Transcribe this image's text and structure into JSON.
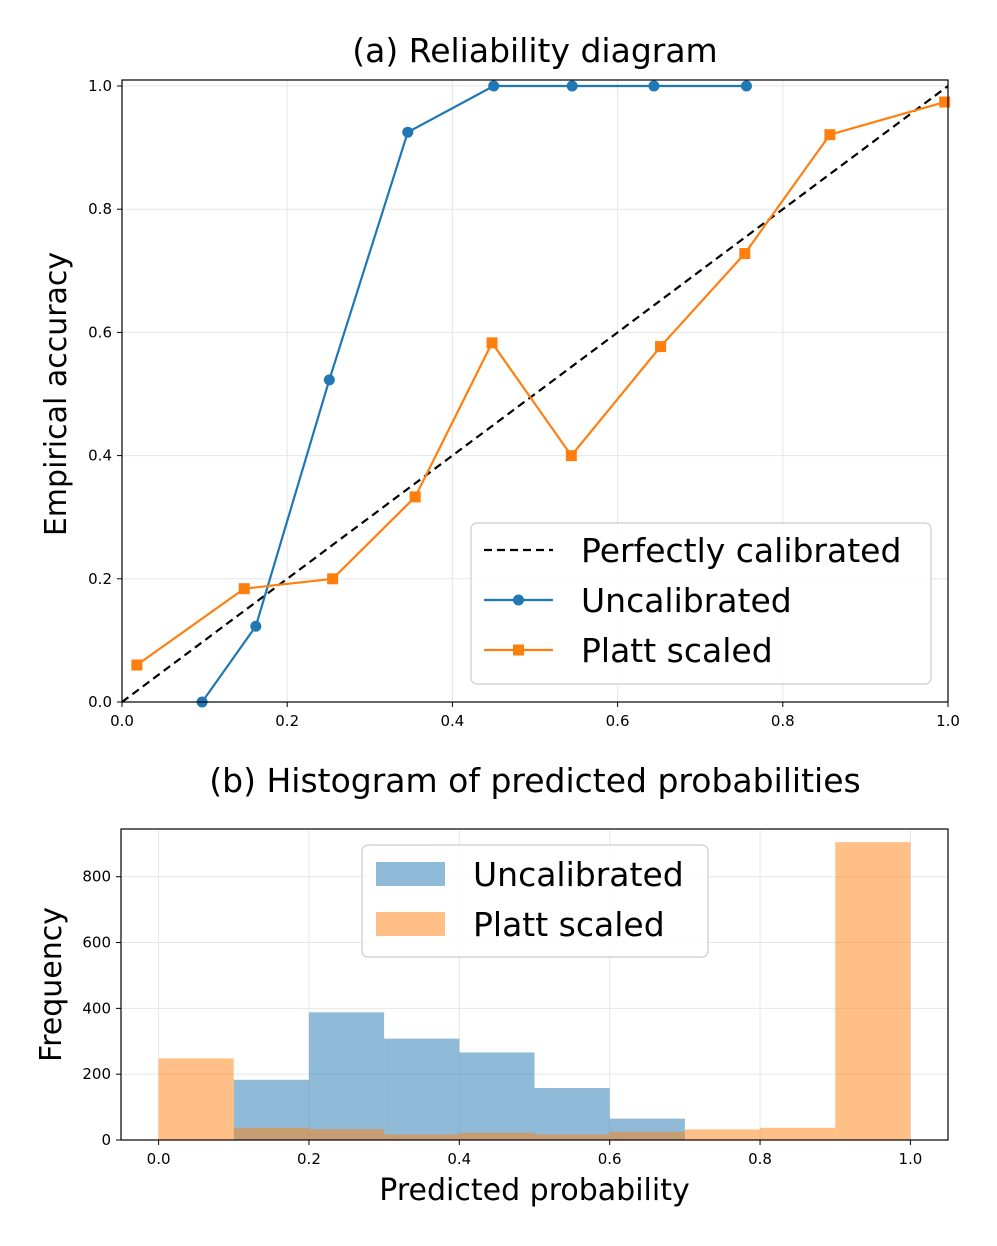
{
  "chart_data": [
    {
      "type": "line",
      "title": "(a) Reliability diagram",
      "xlabel": "",
      "ylabel": "Empirical accuracy",
      "xlim": [
        0.0,
        1.0
      ],
      "ylim": [
        0.0,
        1.0
      ],
      "xticks": [
        "0.0",
        "0.2",
        "0.4",
        "0.6",
        "0.8",
        "1.0"
      ],
      "yticks": [
        "0.0",
        "0.2",
        "0.4",
        "0.6",
        "0.8",
        "1.0"
      ],
      "grid": true,
      "legend_position": "lower-right",
      "series": [
        {
          "name": "Perfectly calibrated",
          "style": "dashed",
          "marker": "none",
          "color": "#000000",
          "x": [
            0.0,
            1.0
          ],
          "y": [
            0.0,
            1.0
          ]
        },
        {
          "name": "Uncalibrated",
          "style": "solid",
          "marker": "circle",
          "color": "#1f77b4",
          "x": [
            0.097,
            0.162,
            0.251,
            0.346,
            0.45,
            0.545,
            0.644,
            0.756
          ],
          "y": [
            0.0,
            0.123,
            0.523,
            0.925,
            1.0,
            1.0,
            1.0,
            1.0
          ]
        },
        {
          "name": "Platt scaled",
          "style": "solid",
          "marker": "square",
          "color": "#ff7f0e",
          "x": [
            0.018,
            0.148,
            0.255,
            0.355,
            0.448,
            0.544,
            0.652,
            0.754,
            0.857,
            0.996
          ],
          "y": [
            0.06,
            0.184,
            0.2,
            0.333,
            0.583,
            0.4,
            0.577,
            0.728,
            0.921,
            0.974
          ]
        }
      ]
    },
    {
      "type": "bar",
      "title": "(b) Histogram of predicted probabilities",
      "xlabel": "Predicted probability",
      "ylabel": "Frequency",
      "xlim": [
        -0.05,
        1.05
      ],
      "ylim": [
        0,
        945
      ],
      "xticks": [
        "0.0",
        "0.2",
        "0.4",
        "0.6",
        "0.8",
        "1.0"
      ],
      "yticks": [
        "0",
        "200",
        "400",
        "600",
        "800"
      ],
      "grid": true,
      "legend_position": "upper-center",
      "bin_edges": [
        0.0,
        0.1,
        0.2,
        0.3,
        0.4,
        0.5,
        0.6,
        0.7,
        0.8,
        0.9,
        1.0
      ],
      "series": [
        {
          "name": "Uncalibrated",
          "color": "#1f77b4",
          "alpha": 0.5,
          "values": [
            0,
            183,
            388,
            308,
            266,
            158,
            65,
            0,
            0,
            0
          ]
        },
        {
          "name": "Platt scaled",
          "color": "#ff7f0e",
          "alpha": 0.5,
          "values": [
            248,
            37,
            33,
            17,
            22,
            17,
            25,
            32,
            37,
            905
          ]
        }
      ]
    }
  ]
}
